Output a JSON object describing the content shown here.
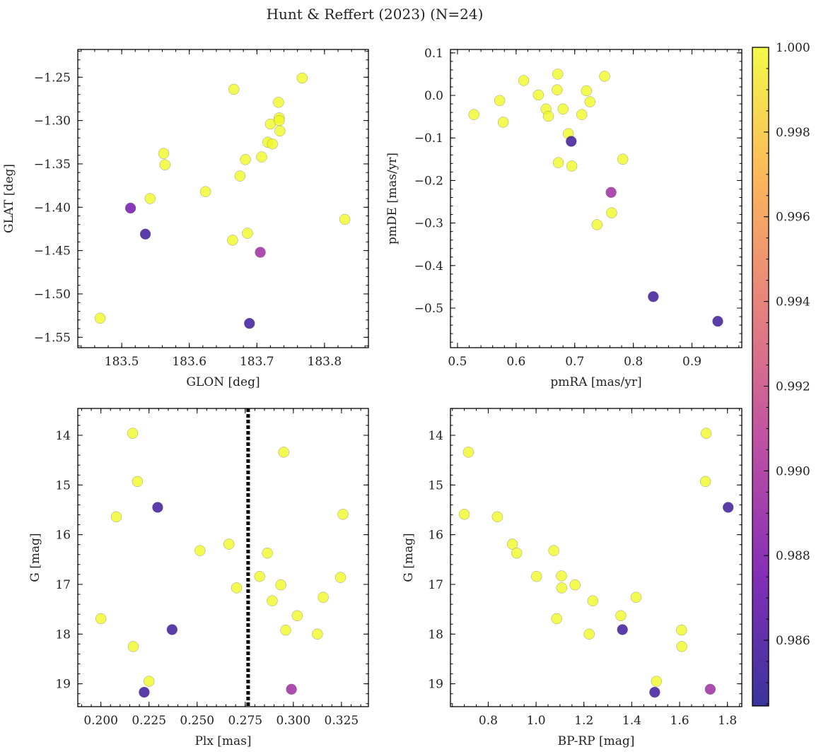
{
  "figure_title": "Hunt & Reffert (2023) (N=24)",
  "colors": {
    "colormap": [
      "#0d0887",
      "#6a00a8",
      "#b12a90",
      "#e16462",
      "#fca636",
      "#f0f921"
    ],
    "point_alpha": 0.78,
    "point_edge": "#777777",
    "vline": "#000000"
  },
  "chart_data": [
    {
      "id": "glon-glat",
      "type": "scatter",
      "title": "",
      "xlabel": "GLON [deg]",
      "ylabel": "GLAT [deg]",
      "xlim": [
        183.435,
        183.865
      ],
      "ylim": [
        -1.562,
        -1.218
      ],
      "y_inverted": false,
      "xticks": [
        183.5,
        183.6,
        183.7,
        183.8
      ],
      "xtick_labels": [
        "183.5",
        "183.6",
        "183.7",
        "183.8"
      ],
      "yticks": [
        -1.55,
        -1.5,
        -1.45,
        -1.4,
        -1.35,
        -1.3,
        -1.25
      ],
      "ytick_labels": [
        "−1.55",
        "−1.50",
        "−1.45",
        "−1.40",
        "−1.35",
        "−1.30",
        "−1.25"
      ],
      "x_minor_step": 0.02,
      "y_minor_step": 0.01,
      "points": [
        {
          "x": 183.468,
          "y": -1.528,
          "c": 1.0
        },
        {
          "x": 183.513,
          "y": -1.401,
          "c": 0.9875
        },
        {
          "x": 183.535,
          "y": -1.431,
          "c": 0.9855
        },
        {
          "x": 183.542,
          "y": -1.39,
          "c": 1.0
        },
        {
          "x": 183.562,
          "y": -1.338,
          "c": 1.0
        },
        {
          "x": 183.564,
          "y": -1.351,
          "c": 1.0
        },
        {
          "x": 183.624,
          "y": -1.382,
          "c": 1.0
        },
        {
          "x": 183.664,
          "y": -1.438,
          "c": 1.0
        },
        {
          "x": 183.666,
          "y": -1.264,
          "c": 1.0
        },
        {
          "x": 183.675,
          "y": -1.364,
          "c": 1.0
        },
        {
          "x": 183.683,
          "y": -1.345,
          "c": 1.0
        },
        {
          "x": 183.686,
          "y": -1.43,
          "c": 1.0
        },
        {
          "x": 183.689,
          "y": -1.534,
          "c": 0.9855
        },
        {
          "x": 183.705,
          "y": -1.452,
          "c": 0.9895
        },
        {
          "x": 183.707,
          "y": -1.342,
          "c": 1.0
        },
        {
          "x": 183.716,
          "y": -1.325,
          "c": 1.0
        },
        {
          "x": 183.72,
          "y": -1.304,
          "c": 1.0
        },
        {
          "x": 183.723,
          "y": -1.327,
          "c": 1.0
        },
        {
          "x": 183.732,
          "y": -1.279,
          "c": 1.0
        },
        {
          "x": 183.733,
          "y": -1.297,
          "c": 1.0
        },
        {
          "x": 183.733,
          "y": -1.3,
          "c": 1.0
        },
        {
          "x": 183.734,
          "y": -1.312,
          "c": 1.0
        },
        {
          "x": 183.767,
          "y": -1.251,
          "c": 1.0
        },
        {
          "x": 183.83,
          "y": -1.414,
          "c": 1.0
        }
      ]
    },
    {
      "id": "pmra-pmde",
      "type": "scatter",
      "title": "",
      "xlabel": "pmRA [mas/yr]",
      "ylabel": "pmDE [mas/yr]",
      "xlim": [
        0.488,
        0.985
      ],
      "ylim": [
        -0.593,
        0.108
      ],
      "y_inverted": false,
      "xticks": [
        0.5,
        0.6,
        0.7,
        0.8,
        0.9
      ],
      "xtick_labels": [
        "0.5",
        "0.6",
        "0.7",
        "0.8",
        "0.9"
      ],
      "yticks": [
        -0.5,
        -0.4,
        -0.3,
        -0.2,
        -0.1,
        0.0,
        0.1
      ],
      "ytick_labels": [
        "−0.5",
        "−0.4",
        "−0.3",
        "−0.2",
        "−0.1",
        "0.0",
        "0.1"
      ],
      "x_minor_step": 0.02,
      "y_minor_step": 0.02,
      "points": [
        {
          "x": 0.528,
          "y": -0.045,
          "c": 1.0
        },
        {
          "x": 0.572,
          "y": -0.012,
          "c": 1.0
        },
        {
          "x": 0.578,
          "y": -0.063,
          "c": 1.0
        },
        {
          "x": 0.613,
          "y": 0.035,
          "c": 1.0
        },
        {
          "x": 0.638,
          "y": 0.001,
          "c": 1.0
        },
        {
          "x": 0.651,
          "y": -0.032,
          "c": 1.0
        },
        {
          "x": 0.655,
          "y": -0.049,
          "c": 1.0
        },
        {
          "x": 0.67,
          "y": 0.013,
          "c": 1.0
        },
        {
          "x": 0.671,
          "y": 0.05,
          "c": 1.0
        },
        {
          "x": 0.672,
          "y": -0.158,
          "c": 1.0
        },
        {
          "x": 0.68,
          "y": -0.032,
          "c": 1.0
        },
        {
          "x": 0.689,
          "y": -0.09,
          "c": 1.0
        },
        {
          "x": 0.694,
          "y": -0.108,
          "c": 0.9855
        },
        {
          "x": 0.695,
          "y": -0.166,
          "c": 1.0
        },
        {
          "x": 0.712,
          "y": -0.045,
          "c": 1.0
        },
        {
          "x": 0.72,
          "y": 0.011,
          "c": 1.0
        },
        {
          "x": 0.726,
          "y": -0.015,
          "c": 1.0
        },
        {
          "x": 0.738,
          "y": -0.304,
          "c": 1.0
        },
        {
          "x": 0.751,
          "y": 0.045,
          "c": 1.0
        },
        {
          "x": 0.762,
          "y": -0.228,
          "c": 0.9895
        },
        {
          "x": 0.763,
          "y": -0.276,
          "c": 1.0
        },
        {
          "x": 0.782,
          "y": -0.15,
          "c": 1.0
        },
        {
          "x": 0.834,
          "y": -0.473,
          "c": 0.9855
        },
        {
          "x": 0.944,
          "y": -0.531,
          "c": 0.9855
        }
      ]
    },
    {
      "id": "plx-g",
      "type": "scatter",
      "title": "",
      "xlabel": "Plx [mas]",
      "ylabel": "G [mag]",
      "xlim": [
        0.188,
        0.339
      ],
      "ylim": [
        19.46,
        13.46
      ],
      "y_inverted": true,
      "xticks": [
        0.2,
        0.225,
        0.25,
        0.275,
        0.3,
        0.325
      ],
      "xtick_labels": [
        "0.200",
        "0.225",
        "0.250",
        "0.275",
        "0.300",
        "0.325"
      ],
      "yticks": [
        14,
        15,
        16,
        17,
        18,
        19
      ],
      "ytick_labels": [
        "14",
        "15",
        "16",
        "17",
        "18",
        "19"
      ],
      "x_minor_step": 0.005,
      "y_minor_step": 0.2,
      "vline_x": 0.2765,
      "points": [
        {
          "x": 0.2,
          "y": 17.69,
          "c": 1.0
        },
        {
          "x": 0.208,
          "y": 15.64,
          "c": 1.0
        },
        {
          "x": 0.2165,
          "y": 13.96,
          "c": 1.0
        },
        {
          "x": 0.2168,
          "y": 18.25,
          "c": 1.0
        },
        {
          "x": 0.219,
          "y": 14.93,
          "c": 1.0
        },
        {
          "x": 0.2225,
          "y": 19.17,
          "c": 0.9855
        },
        {
          "x": 0.225,
          "y": 18.95,
          "c": 1.0
        },
        {
          "x": 0.2295,
          "y": 15.45,
          "c": 0.9855
        },
        {
          "x": 0.237,
          "y": 17.91,
          "c": 0.9855
        },
        {
          "x": 0.2515,
          "y": 16.32,
          "c": 1.0
        },
        {
          "x": 0.2665,
          "y": 16.19,
          "c": 1.0
        },
        {
          "x": 0.2705,
          "y": 17.07,
          "c": 1.0
        },
        {
          "x": 0.2825,
          "y": 16.84,
          "c": 1.0
        },
        {
          "x": 0.2865,
          "y": 16.37,
          "c": 1.0
        },
        {
          "x": 0.289,
          "y": 17.33,
          "c": 1.0
        },
        {
          "x": 0.2935,
          "y": 17.01,
          "c": 1.0
        },
        {
          "x": 0.295,
          "y": 14.34,
          "c": 1.0
        },
        {
          "x": 0.296,
          "y": 17.92,
          "c": 1.0
        },
        {
          "x": 0.299,
          "y": 19.11,
          "c": 0.9895
        },
        {
          "x": 0.302,
          "y": 17.63,
          "c": 1.0
        },
        {
          "x": 0.3125,
          "y": 18.0,
          "c": 1.0
        },
        {
          "x": 0.3155,
          "y": 17.26,
          "c": 1.0
        },
        {
          "x": 0.3245,
          "y": 16.86,
          "c": 1.0
        },
        {
          "x": 0.3258,
          "y": 15.59,
          "c": 1.0
        }
      ]
    },
    {
      "id": "bprp-g",
      "type": "scatter",
      "title": "",
      "xlabel": "BP-RP [mag]",
      "ylabel": "G [mag]",
      "xlim": [
        0.642,
        1.86
      ],
      "ylim": [
        19.46,
        13.46
      ],
      "y_inverted": true,
      "xticks": [
        0.8,
        1.0,
        1.2,
        1.4,
        1.6,
        1.8
      ],
      "xtick_labels": [
        "0.8",
        "1.0",
        "1.2",
        "1.4",
        "1.6",
        "1.8"
      ],
      "yticks": [
        14,
        15,
        16,
        17,
        18,
        19
      ],
      "ytick_labels": [
        "14",
        "15",
        "16",
        "17",
        "18",
        "19"
      ],
      "x_minor_step": 0.05,
      "y_minor_step": 0.2,
      "points": [
        {
          "x": 0.7,
          "y": 15.59,
          "c": 1.0
        },
        {
          "x": 0.717,
          "y": 14.34,
          "c": 1.0
        },
        {
          "x": 0.838,
          "y": 15.64,
          "c": 1.0
        },
        {
          "x": 0.901,
          "y": 16.19,
          "c": 1.0
        },
        {
          "x": 0.919,
          "y": 16.37,
          "c": 1.0
        },
        {
          "x": 1.002,
          "y": 16.84,
          "c": 1.0
        },
        {
          "x": 1.074,
          "y": 16.32,
          "c": 1.0
        },
        {
          "x": 1.086,
          "y": 17.69,
          "c": 1.0
        },
        {
          "x": 1.106,
          "y": 16.83,
          "c": 1.0
        },
        {
          "x": 1.107,
          "y": 17.07,
          "c": 1.0
        },
        {
          "x": 1.163,
          "y": 17.01,
          "c": 1.0
        },
        {
          "x": 1.222,
          "y": 18.0,
          "c": 1.0
        },
        {
          "x": 1.237,
          "y": 17.33,
          "c": 1.0
        },
        {
          "x": 1.354,
          "y": 17.63,
          "c": 1.0
        },
        {
          "x": 1.361,
          "y": 17.91,
          "c": 0.9855
        },
        {
          "x": 1.418,
          "y": 17.26,
          "c": 1.0
        },
        {
          "x": 1.496,
          "y": 19.17,
          "c": 0.9855
        },
        {
          "x": 1.503,
          "y": 18.95,
          "c": 1.0
        },
        {
          "x": 1.608,
          "y": 17.92,
          "c": 1.0
        },
        {
          "x": 1.609,
          "y": 18.25,
          "c": 1.0
        },
        {
          "x": 1.708,
          "y": 14.93,
          "c": 1.0
        },
        {
          "x": 1.711,
          "y": 13.96,
          "c": 1.0
        },
        {
          "x": 1.728,
          "y": 19.11,
          "c": 0.9895
        },
        {
          "x": 1.803,
          "y": 15.45,
          "c": 0.9855
        }
      ]
    }
  ],
  "colorbar": {
    "vmin": 0.98445,
    "vmax": 1.0,
    "ticks": [
      0.986,
      0.988,
      0.99,
      0.992,
      0.994,
      0.996,
      0.998,
      1.0
    ],
    "tick_labels": [
      "0.986",
      "0.988",
      "0.990",
      "0.992",
      "0.994",
      "0.996",
      "0.998",
      "1.000"
    ],
    "minor_step": 0.0005
  }
}
